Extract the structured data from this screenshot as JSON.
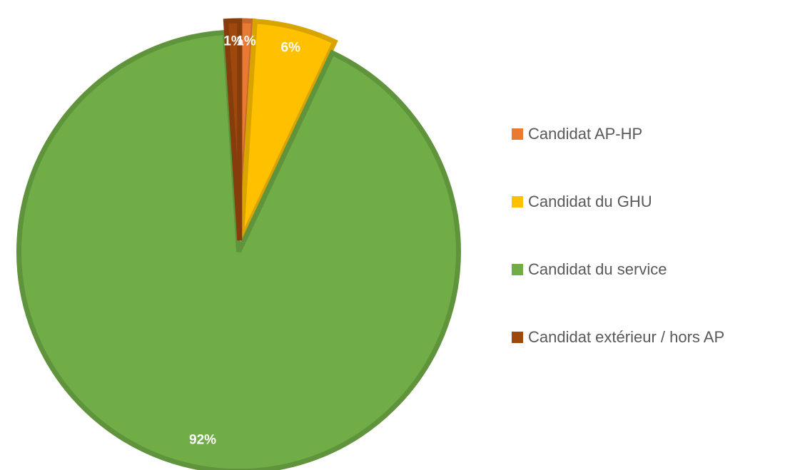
{
  "chart_data": {
    "type": "pie",
    "categories": [
      "Candidat AP-HP",
      "Candidat du GHU",
      "Candidat du service",
      "Candidat extérieur / hors AP"
    ],
    "values": [
      1,
      6,
      92,
      1
    ],
    "value_labels": [
      "1%",
      "6%",
      "92%",
      "1%"
    ],
    "colors": [
      "#E97A33",
      "#FFC000",
      "#70AD47",
      "#9E480E"
    ],
    "legend": "right"
  }
}
